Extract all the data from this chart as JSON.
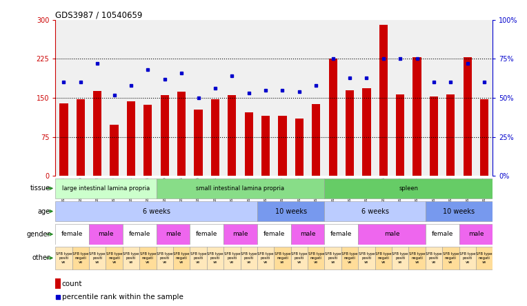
{
  "title": "GDS3987 / 10540659",
  "samples": [
    "GSM738798",
    "GSM738800",
    "GSM738802",
    "GSM738799",
    "GSM738801",
    "GSM738803",
    "GSM738780",
    "GSM738786",
    "GSM738788",
    "GSM738781",
    "GSM738787",
    "GSM738789",
    "GSM738778",
    "GSM738790",
    "GSM738779",
    "GSM738791",
    "GSM738784",
    "GSM738792",
    "GSM738794",
    "GSM738785",
    "GSM738793",
    "GSM738795",
    "GSM738782",
    "GSM738796",
    "GSM738783",
    "GSM738797"
  ],
  "counts": [
    140,
    148,
    163,
    98,
    143,
    137,
    155,
    162,
    127,
    148,
    156,
    122,
    115,
    115,
    110,
    138,
    226,
    165,
    168,
    290,
    157,
    228,
    153,
    157,
    228,
    148
  ],
  "percentiles": [
    60,
    60,
    72,
    52,
    58,
    68,
    62,
    66,
    50,
    56,
    64,
    53,
    55,
    55,
    54,
    58,
    75,
    63,
    63,
    75,
    75,
    75,
    60,
    60,
    72,
    60
  ],
  "bar_color": "#cc0000",
  "dot_color": "#0000cc",
  "left_ylim": [
    0,
    300
  ],
  "left_yticks": [
    0,
    75,
    150,
    225,
    300
  ],
  "right_ylim": [
    0,
    100
  ],
  "right_yticks": [
    0,
    25,
    50,
    75,
    100
  ],
  "right_yticklabels": [
    "0%",
    "25%",
    "50%",
    "75%",
    "100%"
  ],
  "hline_values": [
    75,
    150,
    225
  ],
  "tissue_groups": [
    {
      "label": "large intestinal lamina propria",
      "start": 0,
      "end": 6,
      "color": "#ccffcc"
    },
    {
      "label": "small intestinal lamina propria",
      "start": 6,
      "end": 16,
      "color": "#88dd88"
    },
    {
      "label": "spleen",
      "start": 16,
      "end": 26,
      "color": "#66cc66"
    }
  ],
  "age_groups": [
    {
      "label": "6 weeks",
      "start": 0,
      "end": 12,
      "color": "#bbccff"
    },
    {
      "label": "10 weeks",
      "start": 12,
      "end": 16,
      "color": "#7799ee"
    },
    {
      "label": "6 weeks",
      "start": 16,
      "end": 22,
      "color": "#bbccff"
    },
    {
      "label": "10 weeks",
      "start": 22,
      "end": 26,
      "color": "#7799ee"
    }
  ],
  "gender_groups": [
    {
      "label": "female",
      "start": 0,
      "end": 2,
      "color": "#ffffff"
    },
    {
      "label": "male",
      "start": 2,
      "end": 4,
      "color": "#ee66ee"
    },
    {
      "label": "female",
      "start": 4,
      "end": 6,
      "color": "#ffffff"
    },
    {
      "label": "male",
      "start": 6,
      "end": 8,
      "color": "#ee66ee"
    },
    {
      "label": "female",
      "start": 8,
      "end": 10,
      "color": "#ffffff"
    },
    {
      "label": "male",
      "start": 10,
      "end": 12,
      "color": "#ee66ee"
    },
    {
      "label": "female",
      "start": 12,
      "end": 14,
      "color": "#ffffff"
    },
    {
      "label": "male",
      "start": 14,
      "end": 16,
      "color": "#ee66ee"
    },
    {
      "label": "female",
      "start": 16,
      "end": 18,
      "color": "#ffffff"
    },
    {
      "label": "male",
      "start": 18,
      "end": 22,
      "color": "#ee66ee"
    },
    {
      "label": "female",
      "start": 22,
      "end": 24,
      "color": "#ffffff"
    },
    {
      "label": "male",
      "start": 24,
      "end": 26,
      "color": "#ee66ee"
    }
  ],
  "other_groups": [
    {
      "label": "SFB type\npositi\nve",
      "start": 0,
      "end": 1,
      "color": "#ffe8bb"
    },
    {
      "label": "SFB type\nnegati\nve",
      "start": 1,
      "end": 2,
      "color": "#ffdd99"
    },
    {
      "label": "SFB type\npositi\nve",
      "start": 2,
      "end": 3,
      "color": "#ffe8bb"
    },
    {
      "label": "SFB type\nnegati\nve",
      "start": 3,
      "end": 4,
      "color": "#ffdd99"
    },
    {
      "label": "SFB type\npositi\nve",
      "start": 4,
      "end": 5,
      "color": "#ffe8bb"
    },
    {
      "label": "SFB type\nnegati\nve",
      "start": 5,
      "end": 6,
      "color": "#ffdd99"
    },
    {
      "label": "SFB type\npositi\nve",
      "start": 6,
      "end": 7,
      "color": "#ffe8bb"
    },
    {
      "label": "SFB type\nnegati\nve",
      "start": 7,
      "end": 8,
      "color": "#ffdd99"
    },
    {
      "label": "SFB type\npositi\nve",
      "start": 8,
      "end": 9,
      "color": "#ffe8bb"
    },
    {
      "label": "SFB type\npositi\nve",
      "start": 9,
      "end": 10,
      "color": "#ffe8bb"
    },
    {
      "label": "SFB type\npositi\nve",
      "start": 10,
      "end": 11,
      "color": "#ffe8bb"
    },
    {
      "label": "SFB type\npositi\nve",
      "start": 11,
      "end": 12,
      "color": "#ffe8bb"
    },
    {
      "label": "SFB type\npositi\nve",
      "start": 12,
      "end": 13,
      "color": "#ffe8bb"
    },
    {
      "label": "SFB type\nnegati\nve",
      "start": 13,
      "end": 14,
      "color": "#ffdd99"
    },
    {
      "label": "SFB type\npositi\nve",
      "start": 14,
      "end": 15,
      "color": "#ffe8bb"
    },
    {
      "label": "SFB type\nnegati\nve",
      "start": 15,
      "end": 16,
      "color": "#ffdd99"
    },
    {
      "label": "SFB type\npositi\nve",
      "start": 16,
      "end": 17,
      "color": "#ffe8bb"
    },
    {
      "label": "SFB type\nnegati\nve",
      "start": 17,
      "end": 18,
      "color": "#ffdd99"
    },
    {
      "label": "SFB type\npositi\nve",
      "start": 18,
      "end": 19,
      "color": "#ffe8bb"
    },
    {
      "label": "SFB type\nnegati\nve",
      "start": 19,
      "end": 20,
      "color": "#ffdd99"
    },
    {
      "label": "SFB type\npositi\nve",
      "start": 20,
      "end": 21,
      "color": "#ffe8bb"
    },
    {
      "label": "SFB type\nnegati\nve",
      "start": 21,
      "end": 22,
      "color": "#ffdd99"
    },
    {
      "label": "SFB type\npositi\nve",
      "start": 22,
      "end": 23,
      "color": "#ffe8bb"
    },
    {
      "label": "SFB type\nnegati\nve",
      "start": 23,
      "end": 24,
      "color": "#ffdd99"
    },
    {
      "label": "SFB type\npositi\nve",
      "start": 24,
      "end": 25,
      "color": "#ffe8bb"
    },
    {
      "label": "SFB type\nnegati\nve",
      "start": 25,
      "end": 26,
      "color": "#ffdd99"
    }
  ],
  "row_labels": [
    "tissue",
    "age",
    "gender",
    "other"
  ],
  "arrow_color": "#228822"
}
